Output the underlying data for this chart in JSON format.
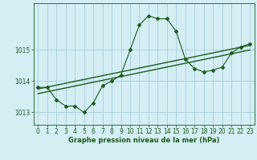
{
  "title": "Graphe pression niveau de la mer (hPa)",
  "background_color": "#d4eef4",
  "grid_color": "#a0c8d8",
  "line_color": "#1a5c1a",
  "xlim": [
    -0.5,
    23.5
  ],
  "ylim": [
    1012.6,
    1016.5
  ],
  "yticks": [
    1013,
    1014,
    1015
  ],
  "xticks": [
    0,
    1,
    2,
    3,
    4,
    5,
    6,
    7,
    8,
    9,
    10,
    11,
    12,
    13,
    14,
    15,
    16,
    17,
    18,
    19,
    20,
    21,
    22,
    23
  ],
  "line1_x": [
    0,
    1,
    2,
    3,
    4,
    5,
    6,
    7,
    8,
    9,
    10,
    11,
    12,
    13,
    14,
    15,
    16,
    17,
    18,
    19,
    20,
    21,
    22,
    23
  ],
  "line1_y": [
    1013.8,
    1013.8,
    1013.4,
    1013.2,
    1013.2,
    1013.0,
    1013.3,
    1013.85,
    1014.0,
    1014.2,
    1015.0,
    1015.8,
    1016.1,
    1016.0,
    1016.0,
    1015.6,
    1014.7,
    1014.4,
    1014.3,
    1014.35,
    1014.45,
    1014.9,
    1015.1,
    1015.2
  ],
  "line2_x": [
    0,
    23
  ],
  "line2_y": [
    1013.6,
    1015.0
  ],
  "line3_x": [
    0,
    23
  ],
  "line3_y": [
    1013.75,
    1015.15
  ],
  "title_fontsize": 6.0,
  "tick_fontsize": 5.5
}
